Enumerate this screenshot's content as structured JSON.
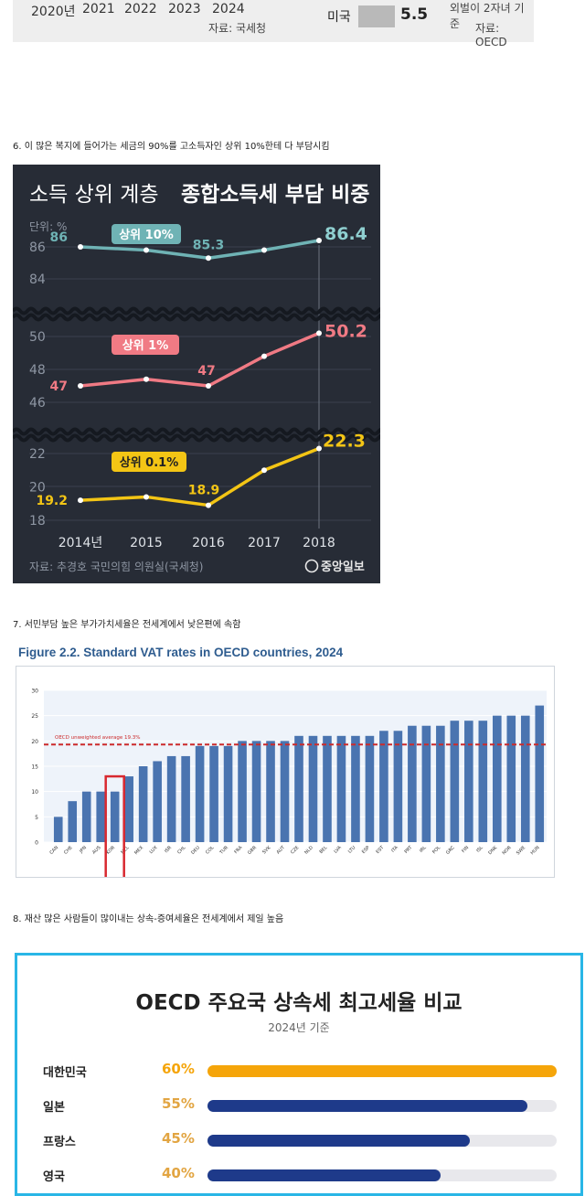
{
  "top_fragment": {
    "years": [
      "2020년",
      "2021",
      "2022",
      "2023",
      "2024"
    ],
    "source_left": "자료: 국세청",
    "us_label": "미국",
    "us_value": "5.5",
    "note": "외벌이 2자녀 기준",
    "source_right": "자료: OECD"
  },
  "captions": {
    "c6": "6. 이 많은 복지에 들어가는 세금의 90%를 고소득자인 상위 10%한테 다 부담시킴",
    "c7": "7. 서민부담 높은 부가가치세율은 전세계에서 낮은편에 속함",
    "c8": "8. 재산 많은 사람들이 많이내는 상속-증여세율은 전세계에서 제일 높음"
  },
  "income_chart": {
    "title_light": "소득 상위 계층",
    "title_bold": "종합소득세 부담 비중",
    "unit": "단위: %",
    "source": "자료: 추경호 국민의힘 의원실(국세청)",
    "logo": "중앙일보",
    "colors": {
      "bg": "#272c36",
      "top10": "#6fb3b5",
      "top1": "#f07a84",
      "top01": "#f3c515",
      "axis_text": "#8e96a3"
    },
    "chart_data": {
      "type": "line",
      "x": [
        "2014년",
        "2015",
        "2016",
        "2017",
        "2018"
      ],
      "panels": [
        {
          "name": "상위 10%",
          "ticks": [
            86,
            84
          ],
          "values": [
            86.0,
            85.8,
            85.3,
            85.8,
            86.4
          ],
          "labels": [
            "86",
            "",
            "85.3",
            "",
            "86.4"
          ]
        },
        {
          "name": "상위 1%",
          "ticks": [
            50,
            48,
            46
          ],
          "values": [
            47.0,
            47.4,
            47.0,
            48.8,
            50.2
          ],
          "labels": [
            "47",
            "",
            "47",
            "",
            "50.2"
          ]
        },
        {
          "name": "상위 0.1%",
          "ticks": [
            22,
            20,
            18
          ],
          "values": [
            19.2,
            19.4,
            18.9,
            21.0,
            22.3
          ],
          "labels": [
            "19.2",
            "",
            "18.9",
            "",
            "22.3"
          ]
        }
      ]
    }
  },
  "vat_chart": {
    "title": "Figure 2.2. Standard VAT rates in OECD countries, 2024",
    "avg_label": "OECD unweighted average 19.3%",
    "colors": {
      "bar": "#4a74b0",
      "avg": "#cc2b2b",
      "highlight": "#d8282f",
      "plot_bg": "#eef3fa"
    },
    "chart_data": {
      "type": "bar",
      "categories": [
        "CAN",
        "CHE",
        "JPN",
        "AUS",
        "KOR",
        "NZL",
        "MEX",
        "LUX",
        "ISR",
        "CHL",
        "DEU",
        "COL",
        "TUR",
        "FRA",
        "GBR",
        "SVK",
        "AUT",
        "CZE",
        "NLD",
        "BEL",
        "LVA",
        "LTU",
        "ESP",
        "EST",
        "ITA",
        "PRT",
        "IRL",
        "POL",
        "GRC",
        "FIN",
        "ISL",
        "DNK",
        "NOR",
        "SWE",
        "HUN"
      ],
      "values": [
        5,
        8.1,
        10,
        10,
        10,
        13,
        15,
        16,
        17,
        17,
        19,
        19,
        19,
        20,
        20,
        20,
        20,
        21,
        21,
        21,
        21,
        21,
        21,
        22,
        22,
        23,
        23,
        23,
        24,
        24,
        24,
        25,
        25,
        25,
        27
      ],
      "average": 19.3,
      "yticks": [
        0,
        5,
        10,
        15,
        20,
        25,
        30
      ],
      "ylim": [
        0,
        30
      ],
      "highlight_category": "KOR"
    }
  },
  "inheritance_chart": {
    "title": "OECD 주요국 상속세 최고세율 비교",
    "subtitle": "2024년 기준",
    "colors": {
      "korea": "#f5a50a",
      "others": "#1e3a8a",
      "border": "#29b6e6"
    },
    "chart_data": {
      "type": "bar",
      "categories": [
        "대한민국",
        "일본",
        "프랑스",
        "영국"
      ],
      "values": [
        60,
        55,
        45,
        40
      ],
      "labels": [
        "60%",
        "55%",
        "45%",
        "40%"
      ],
      "xlim": [
        0,
        60
      ]
    }
  }
}
